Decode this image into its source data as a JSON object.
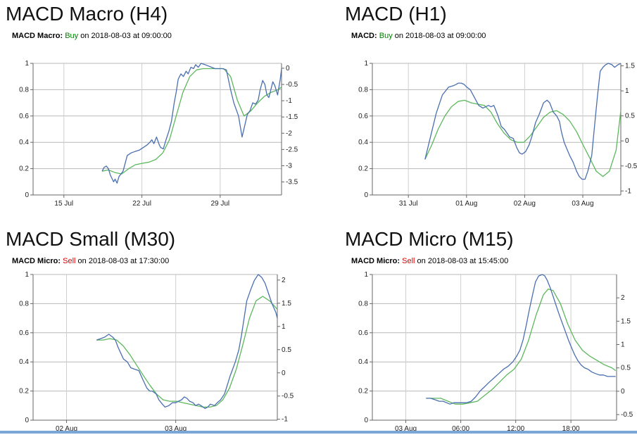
{
  "charts": [
    {
      "title": "MACD Macro (H4)",
      "signal": {
        "label": "MACD Macro:",
        "action": "Buy",
        "suffix": "on 2018-08-03 at 09:00:00"
      },
      "colors": {
        "action": "#008000",
        "macd": "#4a6fb0",
        "signal": "#5cb85c"
      },
      "chart_data": {
        "type": "line",
        "x_domain": [
          0,
          100
        ],
        "x_ticks": [
          {
            "label": "15 Jul",
            "at": 12.4
          },
          {
            "label": "22 Jul",
            "at": 43.8
          },
          {
            "label": "29 Jul",
            "at": 75.3
          }
        ],
        "y_left_ticks": [
          0,
          0.2,
          0.4,
          0.6,
          0.8,
          1
        ],
        "y_left_range": [
          0,
          1
        ],
        "y_right_ticks": [
          0,
          -0.5,
          -1,
          -1.5,
          -2,
          -2.5,
          -3,
          -3.5
        ],
        "y_right_range": [
          -3.9,
          0.15
        ],
        "grid": true,
        "series": [
          {
            "axis": "left",
            "color": "#4a6fb0",
            "x": [
              27.8,
              28.6,
              29.5,
              30.3,
              31.1,
              31.9,
              32.4,
              33.0,
              33.8,
              34.6,
              36.2,
              37.9,
              39.5,
              41.0,
              42.7,
              44.3,
              45.9,
              47.0,
              47.8,
              48.6,
              49.7,
              50.8,
              51.4,
              52.4,
              53.5,
              54.6,
              55.7,
              56.8,
              57.6,
              58.4,
              59.5,
              60.5,
              61.6,
              62.4,
              63.5,
              64.6,
              65.4,
              66.5,
              67.6,
              69.2,
              70.5,
              71.9,
              73.2,
              74.6,
              76.2,
              77.8,
              79.5,
              80.8,
              82.7,
              84.1,
              85.1,
              86.2,
              87.3,
              88.4,
              89.5,
              90.6,
              91.4,
              92.4,
              93.3,
              94.1,
              94.9,
              95.7,
              96.5,
              97.3,
              98.4,
              99.5,
              100
            ],
            "y": [
              0.18,
              0.21,
              0.22,
              0.2,
              0.15,
              0.12,
              0.1,
              0.12,
              0.09,
              0.14,
              0.18,
              0.3,
              0.32,
              0.33,
              0.34,
              0.36,
              0.38,
              0.4,
              0.42,
              0.39,
              0.44,
              0.38,
              0.36,
              0.35,
              0.42,
              0.48,
              0.56,
              0.7,
              0.78,
              0.88,
              0.92,
              0.9,
              0.94,
              0.92,
              0.97,
              0.96,
              0.99,
              0.97,
              1.0,
              0.99,
              0.98,
              0.97,
              0.96,
              0.96,
              0.96,
              0.95,
              0.8,
              0.7,
              0.6,
              0.44,
              0.52,
              0.61,
              0.64,
              0.7,
              0.69,
              0.72,
              0.8,
              0.87,
              0.84,
              0.76,
              0.74,
              0.8,
              0.86,
              0.83,
              0.76,
              0.88,
              0.96
            ]
          },
          {
            "axis": "left",
            "color": "#5cb85c",
            "x": [
              27.8,
              30.3,
              33.0,
              35.7,
              38.5,
              41.2,
              43.9,
              46.7,
              49.4,
              52.2,
              54.9,
              57.6,
              60.3,
              63.1,
              65.8,
              68.5,
              71.3,
              74.0,
              76.7,
              79.5,
              82.2,
              84.9,
              87.7,
              90.4,
              93.1,
              95.9,
              98.6,
              100
            ],
            "y": [
              0.18,
              0.19,
              0.17,
              0.16,
              0.2,
              0.23,
              0.24,
              0.25,
              0.27,
              0.32,
              0.42,
              0.6,
              0.78,
              0.9,
              0.95,
              0.96,
              0.96,
              0.96,
              0.96,
              0.9,
              0.72,
              0.6,
              0.64,
              0.7,
              0.75,
              0.78,
              0.8,
              0.82
            ]
          }
        ]
      }
    },
    {
      "title": "MACD (H1)",
      "signal": {
        "label": "MACD:",
        "action": "Buy",
        "suffix": "on 2018-08-03 at 09:00:00"
      },
      "colors": {
        "action": "#008000",
        "macd": "#4a6fb0",
        "signal": "#5cb85c"
      },
      "chart_data": {
        "type": "line",
        "x_domain": [
          0,
          100
        ],
        "x_ticks": [
          {
            "label": "31 Jul",
            "at": 14.5
          },
          {
            "label": "01 Aug",
            "at": 37.9
          },
          {
            "label": "02 Aug",
            "at": 61.3
          },
          {
            "label": "03 Aug",
            "at": 84.7
          }
        ],
        "y_left_ticks": [
          0,
          0.2,
          0.4,
          0.6,
          0.8,
          1
        ],
        "y_left_range": [
          0,
          1
        ],
        "y_right_ticks": [
          1.5,
          1,
          0.5,
          0,
          -0.5,
          -1
        ],
        "y_right_range": [
          -1.08,
          1.55
        ],
        "grid": true,
        "series": [
          {
            "axis": "left",
            "color": "#4a6fb0",
            "x": [
              21.2,
              23.5,
              25.7,
              28.2,
              30.7,
              32.6,
              33.7,
              34.6,
              35.8,
              36.9,
              38.0,
              39.4,
              41.1,
              42.8,
              44.5,
              45.6,
              46.7,
              47.8,
              48.9,
              50.6,
              51.9,
              53.1,
              54.2,
              55.3,
              56.7,
              58.1,
              59.2,
              60.3,
              61.7,
              63.1,
              64.3,
              65.7,
              67.3,
              68.9,
              70.3,
              71.4,
              72.8,
              74.2,
              75.3,
              76.1,
              77.2,
              78.3,
              79.4,
              80.8,
              82.2,
              83.3,
              84.4,
              85.6,
              86.7,
              88.3,
              89.4,
              90.6,
              91.7,
              92.8,
              93.9,
              95.0,
              96.4,
              97.5,
              98.9,
              100
            ],
            "y": [
              0.27,
              0.45,
              0.62,
              0.76,
              0.82,
              0.83,
              0.84,
              0.85,
              0.85,
              0.84,
              0.82,
              0.8,
              0.74,
              0.68,
              0.66,
              0.67,
              0.68,
              0.67,
              0.68,
              0.6,
              0.52,
              0.5,
              0.47,
              0.44,
              0.43,
              0.36,
              0.32,
              0.31,
              0.33,
              0.38,
              0.45,
              0.55,
              0.62,
              0.7,
              0.72,
              0.7,
              0.63,
              0.6,
              0.56,
              0.48,
              0.4,
              0.35,
              0.3,
              0.25,
              0.18,
              0.14,
              0.12,
              0.12,
              0.18,
              0.3,
              0.52,
              0.75,
              0.94,
              0.97,
              0.99,
              1.0,
              0.99,
              0.97,
              0.99,
              1.0
            ]
          },
          {
            "axis": "left",
            "color": "#5cb85c",
            "x": [
              21.2,
              23.9,
              26.5,
              29.2,
              31.8,
              34.5,
              37.1,
              39.8,
              42.4,
              45.1,
              47.7,
              50.4,
              53.0,
              55.7,
              58.3,
              61.0,
              63.6,
              66.3,
              68.9,
              71.6,
              74.2,
              76.9,
              79.5,
              82.2,
              84.8,
              87.5,
              90.1,
              92.8,
              95.4,
              98.1,
              100
            ],
            "y": [
              0.27,
              0.38,
              0.5,
              0.6,
              0.67,
              0.71,
              0.72,
              0.7,
              0.69,
              0.68,
              0.63,
              0.54,
              0.47,
              0.42,
              0.4,
              0.4,
              0.45,
              0.52,
              0.59,
              0.63,
              0.64,
              0.61,
              0.56,
              0.48,
              0.38,
              0.28,
              0.18,
              0.14,
              0.18,
              0.34,
              0.64
            ]
          }
        ]
      }
    },
    {
      "title": "MACD Small (M30)",
      "signal": {
        "label": "MACD Micro:",
        "action": "Sell",
        "suffix": "on 2018-08-03 at 17:30:00"
      },
      "colors": {
        "action": "#e00000",
        "macd": "#4a6fb0",
        "signal": "#5cb85c"
      },
      "chart_data": {
        "type": "line",
        "x_domain": [
          0,
          100
        ],
        "x_ticks": [
          {
            "label": "02 Aug",
            "at": 13.7
          },
          {
            "label": "03 Aug",
            "at": 58.4
          }
        ],
        "y_left_ticks": [
          0,
          0.2,
          0.4,
          0.6,
          0.8,
          1
        ],
        "y_left_range": [
          0,
          1
        ],
        "y_right_ticks": [
          2,
          1.5,
          1,
          0.5,
          0,
          -0.5,
          -1
        ],
        "y_right_range": [
          -1.02,
          2.12
        ],
        "grid": true,
        "series": [
          {
            "axis": "left",
            "color": "#4a6fb0",
            "x": [
              26.0,
              27.7,
              29.3,
              31.0,
              32.6,
              33.7,
              34.8,
              35.9,
              37.0,
              38.6,
              40.0,
              41.6,
              43.3,
              44.9,
              46.6,
              47.7,
              48.8,
              50.4,
              51.5,
              52.9,
              54.0,
              55.6,
              57.0,
              58.4,
              59.5,
              60.8,
              61.9,
              63.0,
              64.1,
              65.5,
              66.6,
              67.7,
              68.8,
              70.4,
              71.5,
              72.6,
              74.3,
              75.4,
              76.8,
              78.4,
              79.5,
              80.6,
              81.7,
              82.8,
              84.2,
              85.3,
              86.4,
              87.5,
              89.2,
              90.6,
              92.2,
              93.6,
              95.0,
              96.6,
              97.8,
              99.4,
              100
            ],
            "y": [
              0.55,
              0.56,
              0.57,
              0.59,
              0.57,
              0.55,
              0.5,
              0.46,
              0.42,
              0.4,
              0.36,
              0.35,
              0.34,
              0.28,
              0.22,
              0.2,
              0.2,
              0.18,
              0.14,
              0.11,
              0.09,
              0.1,
              0.12,
              0.12,
              0.13,
              0.14,
              0.16,
              0.15,
              0.13,
              0.12,
              0.1,
              0.11,
              0.1,
              0.08,
              0.09,
              0.11,
              0.1,
              0.12,
              0.14,
              0.18,
              0.24,
              0.3,
              0.35,
              0.4,
              0.48,
              0.58,
              0.7,
              0.82,
              0.9,
              0.96,
              1.0,
              0.98,
              0.94,
              0.86,
              0.8,
              0.74,
              0.7
            ]
          },
          {
            "axis": "left",
            "color": "#5cb85c",
            "x": [
              26.0,
              28.7,
              31.4,
              34.2,
              36.9,
              39.6,
              42.3,
              45.0,
              47.8,
              50.5,
              53.2,
              55.9,
              58.7,
              61.4,
              64.1,
              66.8,
              69.5,
              72.3,
              75.0,
              77.7,
              80.4,
              83.2,
              85.9,
              88.6,
              91.3,
              94.0,
              96.8,
              99.5,
              100
            ],
            "y": [
              0.55,
              0.55,
              0.56,
              0.55,
              0.51,
              0.45,
              0.38,
              0.31,
              0.24,
              0.18,
              0.14,
              0.13,
              0.13,
              0.12,
              0.11,
              0.1,
              0.09,
              0.09,
              0.1,
              0.14,
              0.22,
              0.35,
              0.52,
              0.7,
              0.82,
              0.85,
              0.82,
              0.77,
              0.76
            ]
          }
        ]
      }
    },
    {
      "title": "MACD Micro (M15)",
      "signal": {
        "label": "MACD Micro:",
        "action": "Sell",
        "suffix": "on 2018-08-03 at 15:45:00"
      },
      "colors": {
        "action": "#e00000",
        "macd": "#4a6fb0",
        "signal": "#5cb85c"
      },
      "chart_data": {
        "type": "line",
        "x_domain": [
          0,
          100
        ],
        "x_ticks": [
          {
            "label": "03 Aug",
            "at": 13.7
          },
          {
            "label": "06:00",
            "at": 36.2
          },
          {
            "label": "12:00",
            "at": 58.7
          },
          {
            "label": "18:00",
            "at": 81.3
          }
        ],
        "y_left_ticks": [
          0,
          0.2,
          0.4,
          0.6,
          0.8,
          1
        ],
        "y_left_range": [
          0,
          1
        ],
        "y_right_ticks": [
          2,
          1.5,
          1,
          0.5,
          0,
          -0.5
        ],
        "y_right_range": [
          -0.62,
          2.5
        ],
        "grid": true,
        "series": [
          {
            "axis": "left",
            "color": "#4a6fb0",
            "x": [
              22.0,
              23.9,
              25.7,
              27.4,
              29.0,
              30.4,
              31.8,
              33.4,
              35.0,
              36.8,
              38.6,
              40.5,
              42.3,
              44.1,
              46.0,
              47.8,
              49.8,
              51.8,
              53.7,
              55.6,
              57.5,
              59.1,
              60.4,
              61.7,
              63.0,
              64.3,
              65.6,
              66.8,
              68.1,
              69.6,
              70.6,
              71.6,
              72.8,
              74.0,
              75.2,
              76.4,
              77.7,
              79.0,
              80.3,
              81.5,
              82.8,
              84.1,
              85.4,
              86.8,
              88.3,
              89.9,
              91.4,
              93.0,
              94.6,
              96.3,
              98.0,
              99.6
            ],
            "y": [
              0.15,
              0.15,
              0.14,
              0.13,
              0.13,
              0.12,
              0.11,
              0.12,
              0.12,
              0.12,
              0.12,
              0.13,
              0.16,
              0.2,
              0.23,
              0.26,
              0.29,
              0.32,
              0.35,
              0.37,
              0.4,
              0.44,
              0.48,
              0.55,
              0.65,
              0.76,
              0.86,
              0.95,
              0.99,
              1.0,
              0.99,
              0.96,
              0.91,
              0.85,
              0.79,
              0.73,
              0.67,
              0.61,
              0.55,
              0.5,
              0.45,
              0.41,
              0.38,
              0.36,
              0.35,
              0.33,
              0.32,
              0.31,
              0.31,
              0.3,
              0.3,
              0.3
            ]
          },
          {
            "axis": "left",
            "color": "#5cb85c",
            "x": [
              22.0,
              25.0,
              28.0,
              31.0,
              34.0,
              37.0,
              40.0,
              43.0,
              46.0,
              49.0,
              52.0,
              55.0,
              58.0,
              61.0,
              64.0,
              67.0,
              70.0,
              72.0,
              74.0,
              77.0,
              80.0,
              83.0,
              86.0,
              89.0,
              92.0,
              95.0,
              98.0,
              99.6
            ],
            "y": [
              0.15,
              0.15,
              0.15,
              0.13,
              0.11,
              0.11,
              0.12,
              0.13,
              0.17,
              0.21,
              0.26,
              0.31,
              0.35,
              0.42,
              0.55,
              0.72,
              0.86,
              0.9,
              0.89,
              0.8,
              0.66,
              0.55,
              0.48,
              0.44,
              0.41,
              0.38,
              0.36,
              0.34
            ]
          }
        ]
      }
    }
  ]
}
